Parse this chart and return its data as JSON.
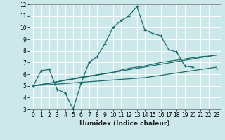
{
  "title": "",
  "xlabel": "Humidex (Indice chaleur)",
  "bg_color": "#cce8ea",
  "grid_color": "#ffffff",
  "line_color": "#1a6b6b",
  "xlim": [
    -0.5,
    23.5
  ],
  "ylim": [
    3,
    12
  ],
  "xticks": [
    0,
    1,
    2,
    3,
    4,
    5,
    6,
    7,
    8,
    9,
    10,
    11,
    12,
    13,
    14,
    15,
    16,
    17,
    18,
    19,
    20,
    21,
    22,
    23
  ],
  "yticks": [
    3,
    4,
    5,
    6,
    7,
    8,
    9,
    10,
    11,
    12
  ],
  "curve1_y": [
    5.0,
    6.3,
    6.4,
    4.7,
    4.4,
    3.0,
    5.2,
    7.0,
    7.5,
    8.6,
    10.0,
    10.6,
    11.0,
    11.8,
    9.8,
    9.5,
    9.3,
    8.1,
    7.9,
    6.7,
    6.6,
    null,
    null,
    6.5
  ],
  "curve2_y": [
    5.0,
    5.05,
    5.1,
    5.15,
    5.2,
    5.25,
    5.3,
    5.35,
    5.4,
    5.45,
    5.5,
    5.55,
    5.6,
    5.65,
    5.7,
    5.8,
    5.9,
    6.0,
    6.1,
    6.2,
    6.3,
    6.4,
    6.5,
    6.6
  ],
  "curve3_y": [
    5.0,
    5.1,
    5.2,
    5.35,
    5.5,
    5.6,
    5.75,
    5.85,
    5.95,
    6.05,
    6.15,
    6.35,
    6.5,
    6.6,
    6.7,
    6.85,
    7.0,
    7.1,
    7.2,
    7.3,
    7.4,
    7.5,
    7.55,
    7.65
  ],
  "curve4_y": [
    5.0,
    7.65
  ],
  "curve4_x": [
    0,
    23
  ],
  "tick_fontsize": 5.5,
  "xlabel_fontsize": 6.5
}
